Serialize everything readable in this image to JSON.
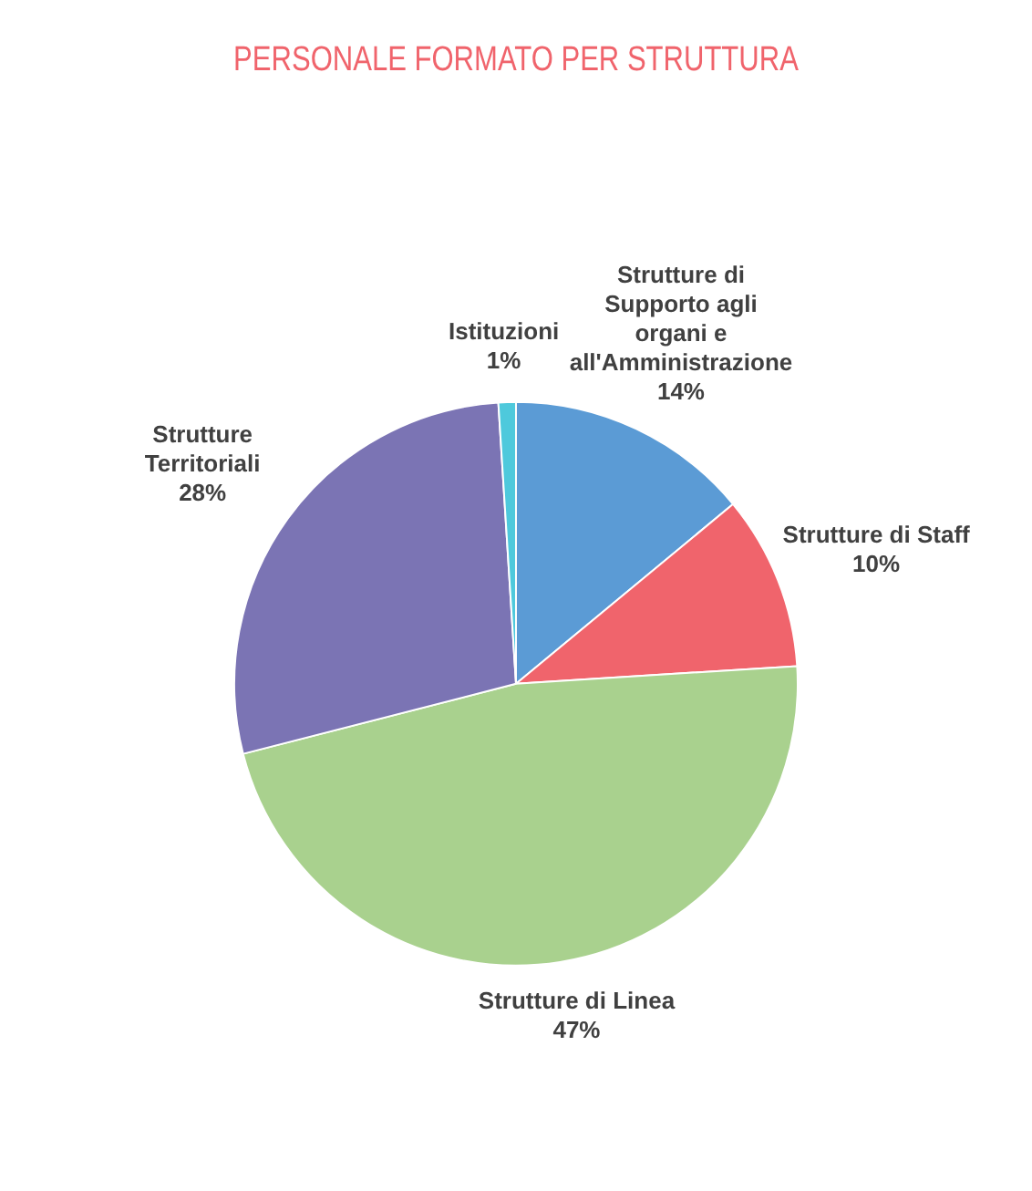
{
  "chart_data": {
    "type": "pie",
    "title": "PERSONALE FORMATO PER STRUTTURA",
    "categories": [
      "Strutture di Supporto agli organi e all'Amministrazione",
      "Strutture di Staff",
      "Strutture di Linea",
      "Strutture Territoriali",
      "Istituzioni"
    ],
    "values": [
      14,
      10,
      47,
      28,
      1
    ],
    "value_labels": [
      "14%",
      "10%",
      "47%",
      "28%",
      "1%"
    ],
    "colors": [
      "#5b9bd5",
      "#f0646c",
      "#a9d18e",
      "#7b74b4",
      "#4ec9dc"
    ],
    "legend": false
  }
}
